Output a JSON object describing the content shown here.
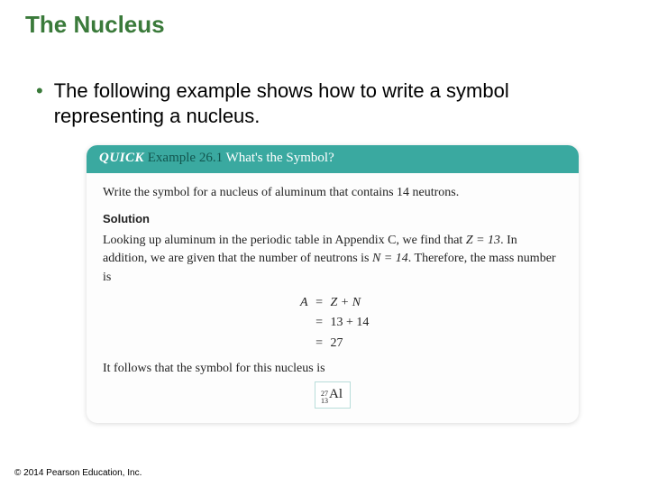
{
  "title": "The Nucleus",
  "bullet": "The following example shows how to write a symbol representing a nucleus.",
  "example": {
    "header_quick": "QUICK",
    "header_example": "Example 26.1",
    "header_question": "What's the Symbol?",
    "header_bg": "#3aa9a0",
    "header_example_color": "#12564f",
    "prompt": "Write the symbol for a nucleus of aluminum that contains 14 neutrons.",
    "solution_label": "Solution",
    "narrative_1a": "Looking up aluminum in the periodic table in Appendix C, we find that ",
    "z_expr": "Z = 13",
    "narrative_1b": ". In addition, we are given that the number of neutrons is ",
    "n_expr": "N = 14",
    "narrative_1c": ". Therefore, the mass number is",
    "eq1_l": "A",
    "eq1_r": "Z + N",
    "eq2_r": "13 + 14",
    "eq3_r": "27",
    "followup": "It follows that the symbol for this nucleus is",
    "nuclide_A": "27",
    "nuclide_Z": "13",
    "nuclide_el": "Al"
  },
  "copyright": "© 2014 Pearson Education, Inc.",
  "colors": {
    "title_green": "#3a7a3a"
  }
}
